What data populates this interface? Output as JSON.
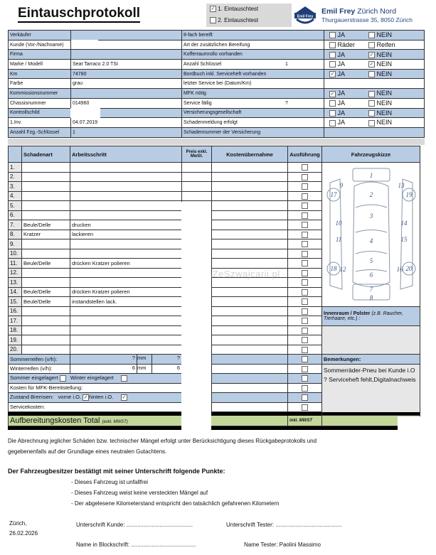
{
  "header": {
    "title": "Eintauschprotokoll",
    "test_options": [
      {
        "label": "1. Eintauschtest",
        "checked": true
      },
      {
        "label": "2. Eintauschtest",
        "checked": false
      }
    ],
    "company": "Emil Frey",
    "company_suffix": "Zürich Nord",
    "address": "Thurgauerstrasse 35, 8050 Zürich",
    "logo_text": "Emil Frey"
  },
  "vehicle_info": [
    {
      "label": "Verkäufer",
      "value": "",
      "label2": "8-fach bereift",
      "value2": "",
      "opts": [
        "JA",
        "NEIN"
      ],
      "checked": [
        false,
        false
      ]
    },
    {
      "label": "Kunde (Vor-/Nachname)",
      "value": "",
      "label2": "Art der zusätzlichen Bereifung",
      "value2": "",
      "opts": [
        "Räder",
        "Reifen"
      ],
      "checked": [
        false,
        false
      ]
    },
    {
      "label": "Firma",
      "value": "",
      "label2": "Kofferraumrollo vorhanden",
      "value2": "",
      "opts": [
        "JA",
        "NEIN"
      ],
      "checked": [
        false,
        true
      ]
    },
    {
      "label": "Marke / Modell",
      "value": "Seat Tarraco 2.0 TSI",
      "label2": "Anzahl Schlüssel",
      "value2": "1",
      "opts": [
        "JA",
        "NEIN"
      ],
      "checked": [
        false,
        true
      ]
    },
    {
      "label": "Km",
      "value": "74780",
      "label2": "Bordbuch inkl. Serviceheft vorhanden",
      "value2": "",
      "opts": [
        "JA",
        "NEIN"
      ],
      "checked": [
        true,
        false
      ]
    },
    {
      "label": "Farbe",
      "value": "grau",
      "label2": "letzter Service bei (Datum/Km)",
      "value2": "",
      "opts": [],
      "checked": []
    },
    {
      "label": "Kommissionsnummer",
      "value": "",
      "label2": "MFK nötig",
      "value2": "",
      "opts": [
        "JA",
        "NEIN"
      ],
      "checked": [
        true,
        false
      ]
    },
    {
      "label": "Chassisnummer",
      "value": "014960",
      "label2": "Service fällig",
      "value2": "?",
      "opts": [
        "JA",
        "NEIN"
      ],
      "checked": [
        false,
        false
      ]
    },
    {
      "label": "Kontrollschild",
      "value": "",
      "label2": "Versicherungsgesellschaft",
      "value2": "",
      "opts": [
        "JA",
        "NEIN"
      ],
      "checked": [
        false,
        false
      ]
    },
    {
      "label": "1.Inv.",
      "value": "04.07.2019",
      "label2": "Schadenmeldung erfolgt",
      "value2": "",
      "opts": [
        "JA",
        "NEIN"
      ],
      "checked": [
        false,
        false
      ]
    },
    {
      "label": "Anzahl Fzg.-Schlüssel",
      "value": "1",
      "label2": "Schadennummer der Versicherung",
      "value2": "",
      "opts": [],
      "checked": []
    }
  ],
  "damage_table": {
    "headers": [
      "Schadenart",
      "Arbeitsschritt",
      "Preis exkl. MwSt.",
      "Kostenübernahme",
      "Ausführung",
      "Fahrzeugskizze"
    ],
    "rows": [
      {
        "n": "1.",
        "type": "",
        "step": ""
      },
      {
        "n": "2.",
        "type": "",
        "step": ""
      },
      {
        "n": "3.",
        "type": "",
        "step": ""
      },
      {
        "n": "4.",
        "type": "",
        "step": ""
      },
      {
        "n": "5.",
        "type": "",
        "step": ""
      },
      {
        "n": "6.",
        "type": "",
        "step": ""
      },
      {
        "n": "7.",
        "type": "Beule/Delle",
        "step": "drucken"
      },
      {
        "n": "8.",
        "type": "Kratzer",
        "step": "lackieren"
      },
      {
        "n": "9.",
        "type": "",
        "step": ""
      },
      {
        "n": "10.",
        "type": "",
        "step": ""
      },
      {
        "n": "11.",
        "type": "Beule/Delle",
        "step": "drücken Kratzer polieren"
      },
      {
        "n": "12.",
        "type": "",
        "step": ""
      },
      {
        "n": "13.",
        "type": "",
        "step": ""
      },
      {
        "n": "14.",
        "type": "Beule/Delle",
        "step": "drücken Kratzer polieren"
      },
      {
        "n": "15.",
        "type": "Beule/Delle",
        "step": "instandstellen lack."
      },
      {
        "n": "16.",
        "type": "",
        "step": ""
      },
      {
        "n": "17.",
        "type": "",
        "step": ""
      },
      {
        "n": "18.",
        "type": "",
        "step": ""
      },
      {
        "n": "19.",
        "type": "",
        "step": ""
      },
      {
        "n": "20.",
        "type": "",
        "step": ""
      }
    ],
    "sketch_numbers": [
      "1",
      "2",
      "3",
      "4",
      "5",
      "6",
      "7",
      "8",
      "9",
      "10",
      "11",
      "12",
      "13",
      "14",
      "15",
      "16",
      "17",
      "18",
      "19",
      "20"
    ]
  },
  "tires": {
    "summer_label": "Sommerreifen (v/h):",
    "summer_front": "?",
    "summer_rear": "?",
    "winter_label": "Winterreifen (v/h):",
    "winter_front": "6",
    "winter_rear": "6",
    "unit": "mm",
    "summer_stored": "Sommer eingelagert",
    "winter_stored": "Winter eingelagert",
    "mfk_cost": "Kosten für MFK-Bereitstellung:",
    "brakes": "Zustand Bremsen:",
    "front_ok": "vorne i.O.",
    "rear_ok": "hinten i.O.",
    "service_cost": "Servicekosten:"
  },
  "side": {
    "interior_label": "Innenraum / Polster",
    "interior_hint": "(z.B. Raucher, Tierhaare, etc.) :",
    "remarks_label": "Bemerkungen:",
    "remarks": "Sommerräder-Pneu bei Kunde i.O ? Serviceheft fehlt,Digitalnachweis"
  },
  "total": {
    "label": "Aufbereitungskosten Total",
    "excl": "(exkl. MWST)",
    "incl": "inkl. MWST"
  },
  "watermark": "AutaZeSzwajcarii.pl",
  "footer": {
    "disclaimer1": "Die Abrechnung jeglicher Schäden bzw. technischer Mängel erfolgt unter Berücksichtigung dieses Rückgabeprotokolls und",
    "disclaimer2": "gegebenenfalls auf der Grundlage eines neutralen Gutachtens.",
    "confirm_title": "Der Fahrzeugbesitzer bestätigt mit seiner Unterschrift folgende Punkte:",
    "points": [
      "- Dieses Fahrzeug ist unfallfrei",
      "- Dieses Fahrzeug weist keine versteckten Mängel auf",
      "- Der abgelesene Kilometerstand entspricht den tatsächlich gefahrenen Kilometern"
    ],
    "place": "Zürich,",
    "date": "26.02.2026",
    "sig_customer": "Unterschrift Kunde: ..........................................",
    "sig_tester": "Unterschrift Tester: ..........................................",
    "name_block": "Name in Blockschrift: .........................................",
    "tester_name": "Name Tester:  Paolini Massimo"
  },
  "colors": {
    "blue": "#b8cce4",
    "green": "#c4d79b",
    "gray": "#d9d9d9",
    "brand": "#1f3e78"
  }
}
